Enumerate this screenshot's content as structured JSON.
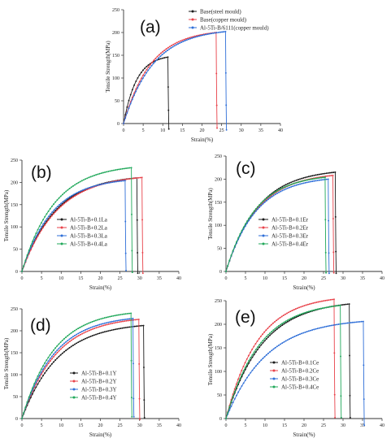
{
  "chart_data": [
    {
      "type": "scatter",
      "panel_label": "(a)",
      "xlabel": "Strain(%)",
      "ylabel": "Tensile Strength(MPa)",
      "xlim": [
        0,
        40
      ],
      "ylim": [
        0,
        250
      ],
      "xticks": [
        "0",
        "5",
        "10",
        "15",
        "20",
        "25",
        "30",
        "35",
        "40"
      ],
      "yticks": [
        "0",
        "50",
        "100",
        "150",
        "200",
        "250"
      ],
      "legend_position": "top-right",
      "series": [
        {
          "name": "Base(steel mould)",
          "color": "#1a1a1a",
          "max_strength": 146,
          "fracture_strain": 11.3,
          "final_strength": -12
        },
        {
          "name": "Base(copper mould)",
          "color": "#e8424a",
          "max_strength": 200,
          "fracture_strain": 23.6,
          "final_strength": -10
        },
        {
          "name": "Al-5Ti-B/6111(copper mould)",
          "color": "#2f6fd8",
          "max_strength": 202,
          "fracture_strain": 26.0,
          "final_strength": -14
        }
      ]
    },
    {
      "type": "scatter",
      "panel_label": "(b)",
      "xlabel": "Strain(%)",
      "ylabel": "Tensile Strength(MPa)",
      "xlim": [
        0,
        40
      ],
      "ylim": [
        0,
        250
      ],
      "xticks": [
        "0",
        "5",
        "10",
        "15",
        "20",
        "25",
        "30",
        "35",
        "40"
      ],
      "yticks": [
        "0",
        "50",
        "100",
        "150",
        "200",
        "250"
      ],
      "legend_position": "center-left",
      "series": [
        {
          "name": "Al-5Ti-B+0.1La",
          "color": "#1a1a1a",
          "max_strength": 210,
          "fracture_strain": 29.3,
          "final_strength": -4
        },
        {
          "name": "Al-5Ti-B+0.2La",
          "color": "#e8424a",
          "max_strength": 211,
          "fracture_strain": 30.6,
          "final_strength": -4
        },
        {
          "name": "Al-5Ti-B+0.3La",
          "color": "#2f6fd8",
          "max_strength": 204,
          "fracture_strain": 26.3,
          "final_strength": 2
        },
        {
          "name": "Al-5Ti-B+0.4La",
          "color": "#20a85a",
          "max_strength": 233,
          "fracture_strain": 27.9,
          "final_strength": -2
        }
      ]
    },
    {
      "type": "scatter",
      "panel_label": "(c)",
      "xlabel": "Strain(%)",
      "ylabel": "Tensile Strength(MPa)",
      "xlim": [
        0,
        40
      ],
      "ylim": [
        0,
        250
      ],
      "xticks": [
        "0",
        "5",
        "10",
        "15",
        "20",
        "25",
        "30",
        "35",
        "40"
      ],
      "yticks": [
        "0",
        "50",
        "100",
        "150",
        "200",
        "250"
      ],
      "legend_position": "center-left",
      "series": [
        {
          "name": "Al-5Ti-B+0.1Er",
          "color": "#1a1a1a",
          "max_strength": 215,
          "fracture_strain": 28.0,
          "final_strength": -4
        },
        {
          "name": "Al-5Ti-B+0.2Er",
          "color": "#e8424a",
          "max_strength": 208,
          "fracture_strain": 27.4,
          "final_strength": -3
        },
        {
          "name": "Al-5Ti-B+0.3Er",
          "color": "#2f6fd8",
          "max_strength": 200,
          "fracture_strain": 26.2,
          "final_strength": -4
        },
        {
          "name": "Al-5Ti-B+0.4Er",
          "color": "#20a85a",
          "max_strength": 204,
          "fracture_strain": 25.4,
          "final_strength": -3
        }
      ]
    },
    {
      "type": "scatter",
      "panel_label": "(d)",
      "xlabel": "Strain(%)",
      "ylabel": "Tensile Strength(MPa)",
      "xlim": [
        0,
        40
      ],
      "ylim": [
        0,
        250
      ],
      "xticks": [
        "0",
        "5",
        "10",
        "15",
        "20",
        "25",
        "30",
        "35",
        "40"
      ],
      "yticks": [
        "0",
        "50",
        "100",
        "150",
        "200",
        "250"
      ],
      "legend_position": "center-right",
      "series": [
        {
          "name": "Al-5Ti-B+0.1Y",
          "color": "#1a1a1a",
          "max_strength": 212,
          "fracture_strain": 31.0,
          "final_strength": 2
        },
        {
          "name": "Al-5Ti-B+0.2Y",
          "color": "#e8424a",
          "max_strength": 226,
          "fracture_strain": 29.8,
          "final_strength": -2
        },
        {
          "name": "Al-5Ti-B+0.3Y",
          "color": "#2f6fd8",
          "max_strength": 228,
          "fracture_strain": 28.3,
          "final_strength": 4
        },
        {
          "name": "Al-5Ti-B+0.4Y",
          "color": "#20a85a",
          "max_strength": 240,
          "fracture_strain": 27.8,
          "final_strength": 4
        }
      ]
    },
    {
      "type": "scatter",
      "panel_label": "(e)",
      "xlabel": "Strain(%)",
      "ylabel": "Tensile Strength(MPa)",
      "xlim": [
        0,
        40
      ],
      "ylim": [
        0,
        250
      ],
      "xticks": [
        "0",
        "5",
        "10",
        "15",
        "20",
        "25",
        "30",
        "35",
        "40"
      ],
      "yticks": [
        "0",
        "50",
        "100",
        "150",
        "200",
        "250"
      ],
      "legend_position": "center-right",
      "series": [
        {
          "name": "Al-5Ti-B+0.1Ce",
          "color": "#1a1a1a",
          "max_strength": 243,
          "fracture_strain": 31.6,
          "final_strength": 2
        },
        {
          "name": "Al-5Ti-B+0.2Ce",
          "color": "#e8424a",
          "max_strength": 253,
          "fracture_strain": 27.7,
          "final_strength": 2
        },
        {
          "name": "Al-5Ti-B+0.3Ce",
          "color": "#2f6fd8",
          "max_strength": 206,
          "fracture_strain": 35.2,
          "final_strength": -14
        },
        {
          "name": "Al-5Ti-B+0.4Ce",
          "color": "#20a85a",
          "max_strength": 240,
          "fracture_strain": 29.3,
          "final_strength": 2
        }
      ]
    }
  ]
}
